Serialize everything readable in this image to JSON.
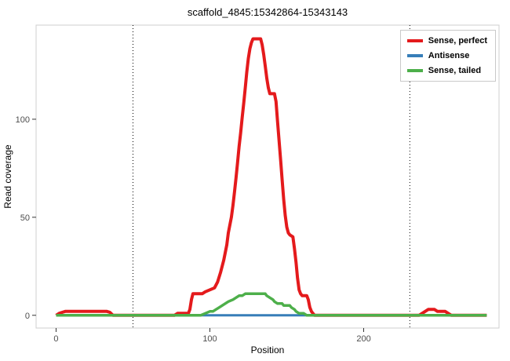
{
  "chart_data": {
    "type": "line",
    "title": "scaffold_4845:15342864-15343143",
    "xlabel": "Position",
    "ylabel": "Read coverage",
    "xlim": [
      -13,
      288
    ],
    "ylim": [
      -6.5,
      148
    ],
    "xticks": [
      0,
      100,
      200
    ],
    "yticks": [
      0,
      50,
      100
    ],
    "vlines": [
      50,
      230
    ],
    "grid": "off",
    "legend_position": "top-right",
    "panel_border_color": "#cfcfcf",
    "vline_color": "#000000",
    "series": [
      {
        "name": "Sense, perfect",
        "color": "#E41A1C",
        "width": 4,
        "z": 2,
        "points": [
          [
            0,
            0
          ],
          [
            2,
            1
          ],
          [
            4,
            1.5
          ],
          [
            6,
            2
          ],
          [
            33,
            2
          ],
          [
            35,
            1.5
          ],
          [
            37,
            0
          ],
          [
            77,
            0
          ],
          [
            79,
            1
          ],
          [
            86,
            1
          ],
          [
            87,
            3
          ],
          [
            88,
            8
          ],
          [
            89,
            11
          ],
          [
            95,
            11
          ],
          [
            97,
            12
          ],
          [
            100,
            13
          ],
          [
            103,
            14
          ],
          [
            105,
            17
          ],
          [
            107,
            22
          ],
          [
            109,
            28
          ],
          [
            111,
            36
          ],
          [
            112,
            42
          ],
          [
            114,
            50
          ],
          [
            115,
            56
          ],
          [
            116,
            63
          ],
          [
            117,
            70
          ],
          [
            118,
            78
          ],
          [
            119,
            86
          ],
          [
            120,
            93
          ],
          [
            121,
            101
          ],
          [
            122,
            108
          ],
          [
            123,
            116
          ],
          [
            124,
            124
          ],
          [
            125,
            131
          ],
          [
            126,
            136
          ],
          [
            127,
            139
          ],
          [
            128,
            141
          ],
          [
            133,
            141
          ],
          [
            134,
            138
          ],
          [
            135,
            133
          ],
          [
            136,
            127
          ],
          [
            137,
            121
          ],
          [
            138,
            116
          ],
          [
            139,
            113
          ],
          [
            142,
            113
          ],
          [
            143,
            109
          ],
          [
            144,
            99
          ],
          [
            145,
            89
          ],
          [
            146,
            79
          ],
          [
            147,
            69
          ],
          [
            148,
            59
          ],
          [
            149,
            51
          ],
          [
            150,
            45
          ],
          [
            151,
            42
          ],
          [
            152,
            41
          ],
          [
            154,
            40
          ],
          [
            155,
            34
          ],
          [
            156,
            27
          ],
          [
            157,
            19
          ],
          [
            158,
            13
          ],
          [
            159,
            11
          ],
          [
            160,
            10
          ],
          [
            163,
            10
          ],
          [
            164,
            8
          ],
          [
            165,
            4
          ],
          [
            166,
            2
          ],
          [
            167,
            1
          ],
          [
            168,
            0
          ],
          [
            236,
            0
          ],
          [
            238,
            1
          ],
          [
            240,
            2
          ],
          [
            242,
            3
          ],
          [
            246,
            3
          ],
          [
            248,
            2
          ],
          [
            253,
            2
          ],
          [
            255,
            1
          ],
          [
            257,
            0
          ],
          [
            280,
            0
          ]
        ]
      },
      {
        "name": "Antisense",
        "color": "#377EB8",
        "width": 3,
        "z": 1,
        "points": [
          [
            0,
            0
          ],
          [
            280,
            0
          ]
        ]
      },
      {
        "name": "Sense, tailed",
        "color": "#4DAF4A",
        "width": 3.5,
        "z": 3,
        "points": [
          [
            0,
            0
          ],
          [
            94,
            0
          ],
          [
            97,
            1
          ],
          [
            100,
            2
          ],
          [
            102,
            2
          ],
          [
            104,
            3
          ],
          [
            106,
            4
          ],
          [
            108,
            5
          ],
          [
            110,
            6
          ],
          [
            112,
            7
          ],
          [
            115,
            8
          ],
          [
            117,
            9
          ],
          [
            119,
            10
          ],
          [
            121,
            10
          ],
          [
            123,
            11
          ],
          [
            125,
            11
          ],
          [
            136,
            11
          ],
          [
            137,
            10
          ],
          [
            139,
            9
          ],
          [
            141,
            8
          ],
          [
            142,
            7
          ],
          [
            144,
            6
          ],
          [
            147,
            6
          ],
          [
            148,
            5
          ],
          [
            152,
            5
          ],
          [
            153,
            4
          ],
          [
            155,
            3
          ],
          [
            156,
            2
          ],
          [
            158,
            1
          ],
          [
            161,
            1
          ],
          [
            163,
            0
          ],
          [
            280,
            0
          ]
        ]
      }
    ]
  }
}
